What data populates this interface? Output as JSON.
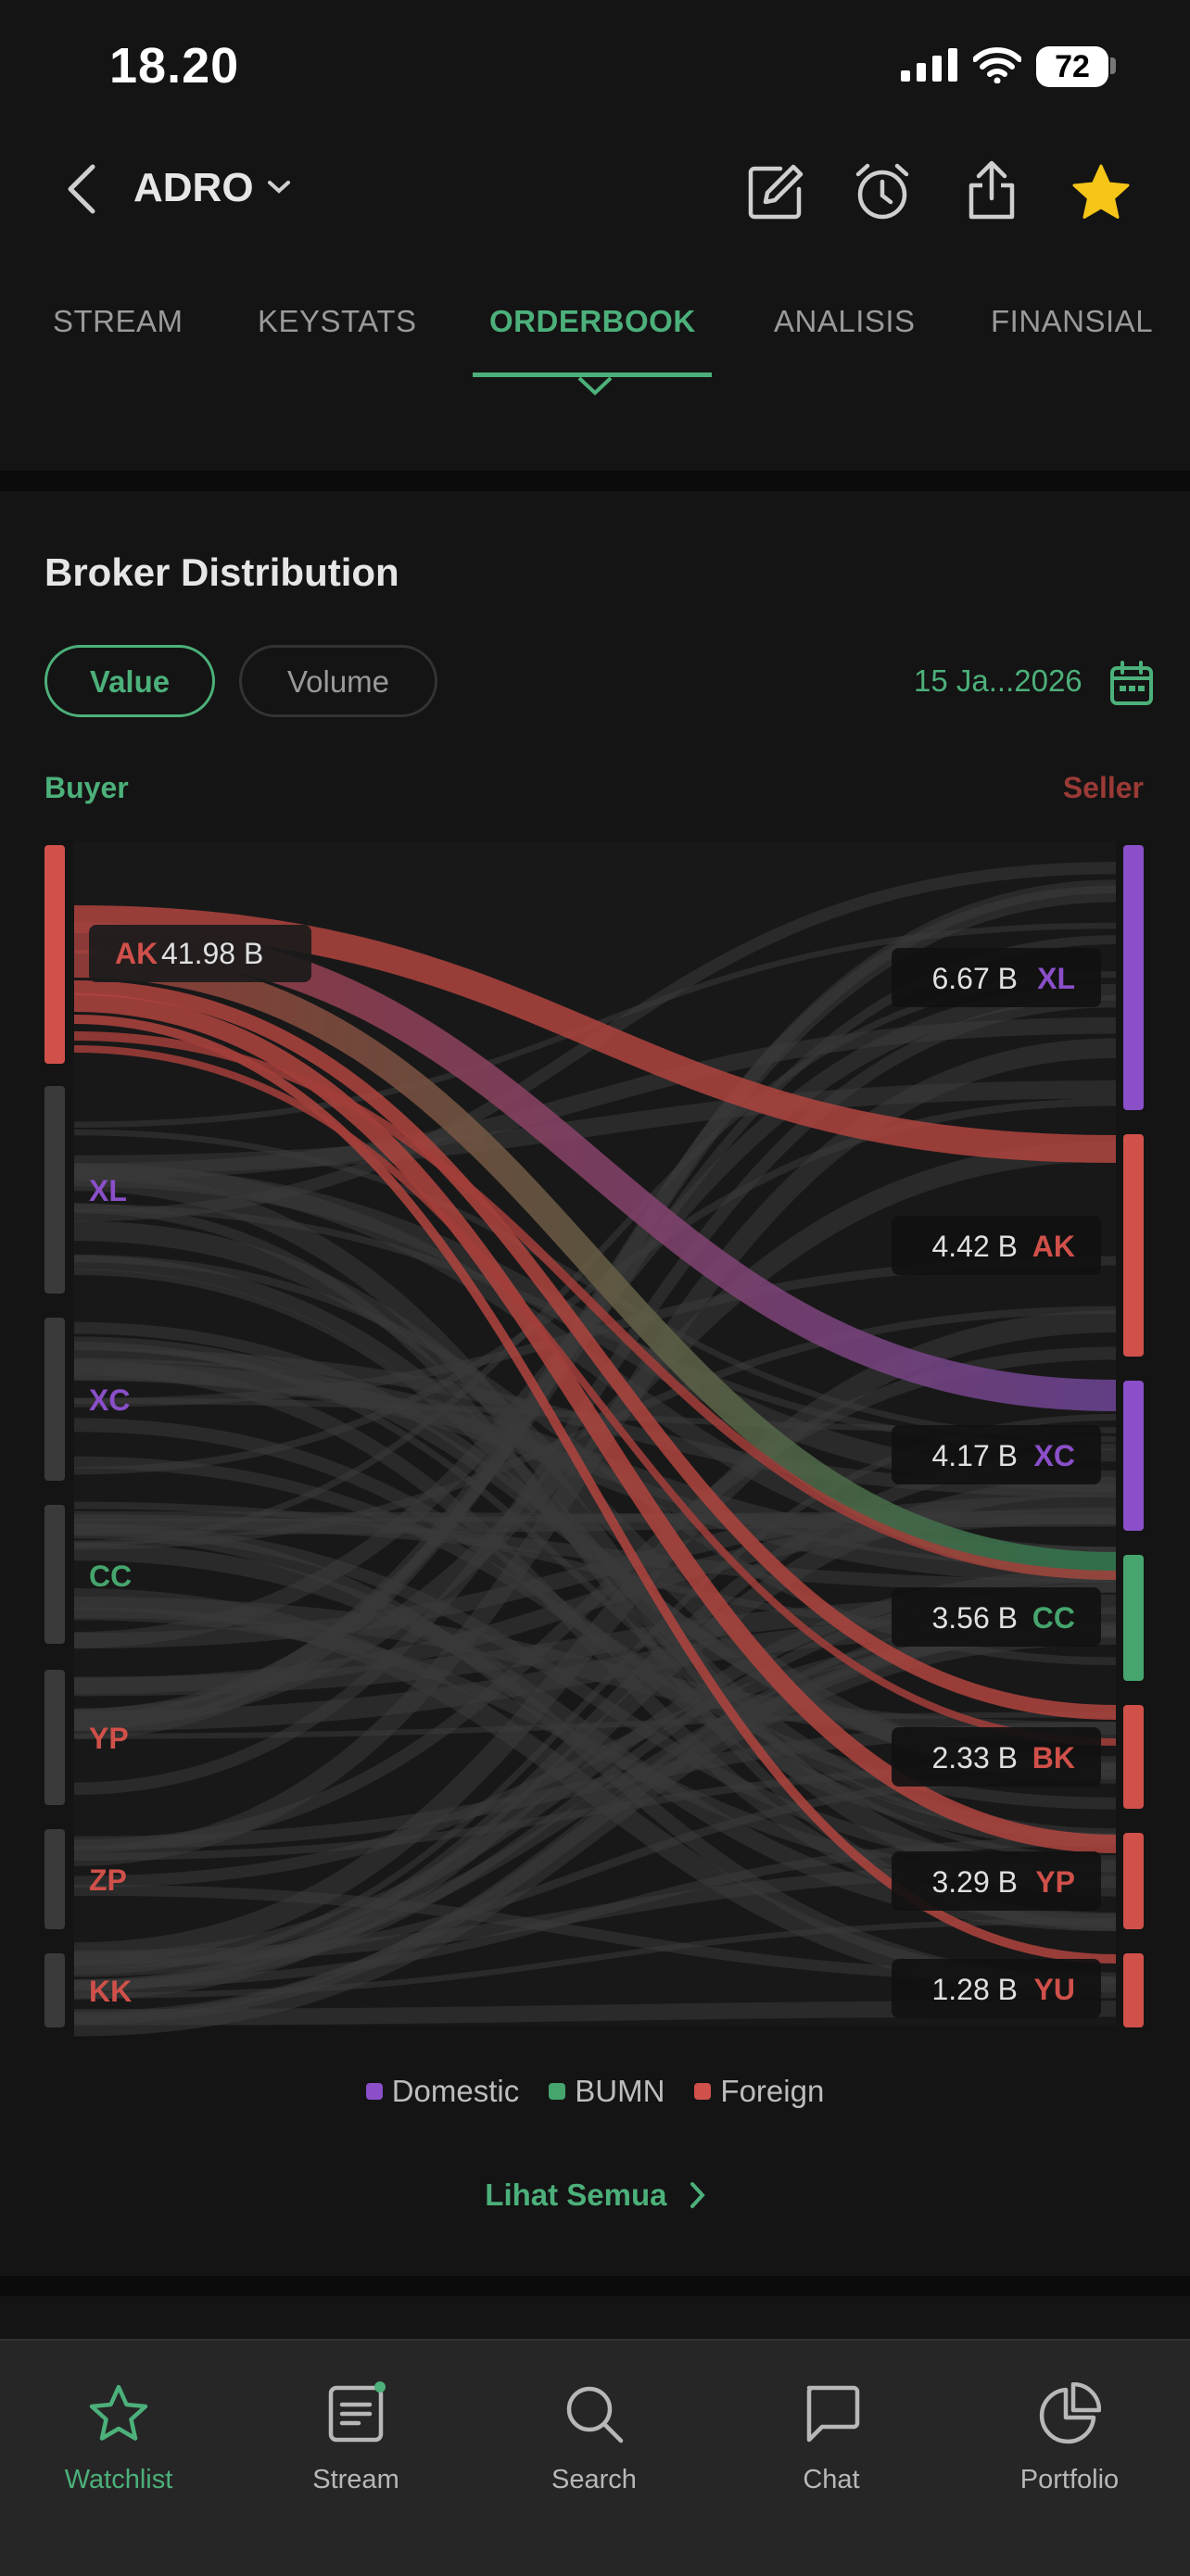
{
  "status_bar": {
    "time": "18.20",
    "battery": "72"
  },
  "header": {
    "stock_code": "ADRO"
  },
  "tabs": [
    "STREAM",
    "KEYSTATS",
    "ORDERBOOK",
    "ANALISIS",
    "FINANSIAL"
  ],
  "active_tab": "ORDERBOOK",
  "broker_distribution": {
    "title": "Broker Distribution",
    "toggle": {
      "value_label": "Value",
      "volume_label": "Volume",
      "selected": "Value"
    },
    "date": "15 Ja...2026",
    "buyer_label": "Buyer",
    "seller_label": "Seller",
    "colors": {
      "domestic": "#8a4fc9",
      "bumn": "#46a56d",
      "foreign": "#d0504a"
    },
    "buyers": [
      {
        "code": "AK",
        "value": "41.98 B",
        "type": "foreign"
      },
      {
        "code": "XL",
        "type": "domestic"
      },
      {
        "code": "XC",
        "type": "domestic"
      },
      {
        "code": "CC",
        "type": "bumn"
      },
      {
        "code": "YP",
        "type": "foreign"
      },
      {
        "code": "ZP",
        "type": "foreign"
      },
      {
        "code": "KK",
        "type": "foreign"
      }
    ],
    "sellers": [
      {
        "code": "XL",
        "value": "6.67 B",
        "type": "domestic"
      },
      {
        "code": "AK",
        "value": "4.42 B",
        "type": "foreign"
      },
      {
        "code": "XC",
        "value": "4.17 B",
        "type": "domestic"
      },
      {
        "code": "CC",
        "value": "3.56 B",
        "type": "bumn"
      },
      {
        "code": "BK",
        "value": "2.33 B",
        "type": "foreign"
      },
      {
        "code": "YP",
        "value": "3.29 B",
        "type": "foreign"
      },
      {
        "code": "YU",
        "value": "1.28 B",
        "type": "foreign"
      }
    ],
    "legend": [
      "Domestic",
      "BUMN",
      "Foreign"
    ],
    "see_all": "Lihat Semua"
  },
  "bottom_nav": [
    {
      "label": "Watchlist",
      "icon": "star-icon",
      "active": true
    },
    {
      "label": "Stream",
      "icon": "stream-icon"
    },
    {
      "label": "Search",
      "icon": "search-icon"
    },
    {
      "label": "Chat",
      "icon": "chat-icon"
    },
    {
      "label": "Portfolio",
      "icon": "pie-chart-icon"
    }
  ]
}
